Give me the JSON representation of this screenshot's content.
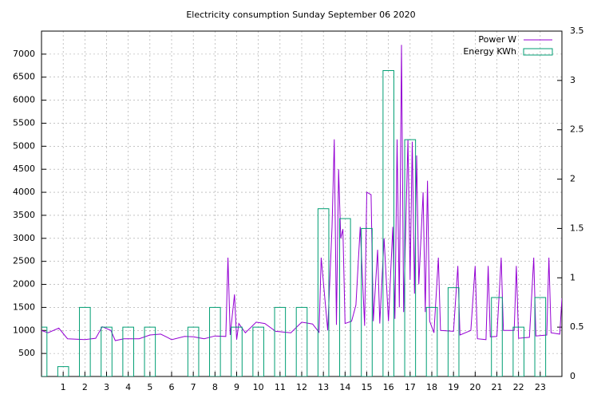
{
  "chart_data": {
    "type": "line",
    "title": "Electricity consumption Sunday September 06 2020",
    "xlim": [
      0,
      24
    ],
    "xticks": [
      1,
      2,
      3,
      4,
      5,
      6,
      7,
      8,
      9,
      10,
      11,
      12,
      13,
      14,
      15,
      16,
      17,
      18,
      19,
      20,
      21,
      22,
      23
    ],
    "ylim": [
      0,
      7500
    ],
    "yticks": [
      500,
      1000,
      1500,
      2000,
      2500,
      3000,
      3500,
      4000,
      4500,
      5000,
      5500,
      6000,
      6500,
      7000
    ],
    "y2lim": [
      0,
      3.5
    ],
    "y2ticks": [
      0,
      0.5,
      1,
      1.5,
      2,
      2.5,
      3,
      3.5
    ],
    "grid": true,
    "legend": "top-right",
    "series": [
      {
        "name": "Power W",
        "color": "#9400d3",
        "kind": "line",
        "x": [
          0,
          0.3,
          0.8,
          1.2,
          2,
          2.5,
          2.8,
          3.2,
          3.4,
          3.8,
          4.5,
          5,
          5.5,
          5.8,
          6,
          6.6,
          7,
          7.5,
          8,
          8.5,
          8.6,
          8.7,
          8.9,
          9,
          9.1,
          9.4,
          9.9,
          10.3,
          10.8,
          11.5,
          12,
          12.5,
          12.8,
          12.9,
          13.2,
          13.4,
          13.5,
          13.6,
          13.7,
          13.8,
          13.9,
          14,
          14.3,
          14.5,
          14.7,
          14.9,
          15,
          15.2,
          15.3,
          15.5,
          15.6,
          15.8,
          16,
          16.2,
          16.3,
          16.4,
          16.5,
          16.6,
          16.7,
          16.9,
          17,
          17.1,
          17.2,
          17.3,
          17.4,
          17.6,
          17.7,
          17.8,
          17.9,
          18.1,
          18.3,
          18.4,
          19,
          19.2,
          19.3,
          19.8,
          20,
          20.1,
          20.5,
          20.6,
          20.7,
          21,
          21.2,
          21.3,
          21.8,
          21.9,
          22,
          22.5,
          22.7,
          22.8,
          23.3,
          23.4,
          23.5,
          23.9,
          24
        ],
        "values": [
          1000,
          950,
          1050,
          820,
          800,
          830,
          1080,
          1000,
          780,
          820,
          820,
          900,
          920,
          850,
          800,
          870,
          860,
          820,
          880,
          870,
          2580,
          900,
          1780,
          800,
          1150,
          950,
          1180,
          1150,
          980,
          950,
          1180,
          1140,
          960,
          2580,
          1000,
          3250,
          5150,
          1120,
          4500,
          3000,
          3200,
          1150,
          1200,
          1550,
          3250,
          1100,
          4000,
          3950,
          1200,
          2750,
          1150,
          3000,
          1200,
          3250,
          1250,
          5150,
          1500,
          7200,
          1400,
          5150,
          2100,
          5100,
          1800,
          4800,
          2000,
          4000,
          1400,
          4250,
          1200,
          950,
          2580,
          1000,
          980,
          2400,
          900,
          1000,
          2400,
          820,
          800,
          2400,
          860,
          870,
          2580,
          1000,
          1000,
          2400,
          830,
          850,
          2580,
          880,
          900,
          2580,
          950,
          920,
          1700
        ]
      },
      {
        "name": "Energy KWh",
        "color": "#009e73",
        "kind": "box",
        "axis": "y2",
        "x": [
          0,
          1,
          2,
          3,
          4,
          5,
          6,
          7,
          8,
          9,
          10,
          11,
          12,
          13,
          14,
          15,
          16,
          17,
          18,
          19,
          20,
          21,
          22,
          23
        ],
        "values": [
          0.5,
          0.1,
          0.7,
          0.5,
          0.5,
          0.5,
          null,
          0.5,
          0.7,
          0.5,
          0.5,
          0.7,
          0.7,
          1.7,
          1.6,
          1.5,
          3.1,
          2.4,
          0.7,
          0.9,
          null,
          0.8,
          0.5,
          0.8
        ]
      }
    ]
  }
}
